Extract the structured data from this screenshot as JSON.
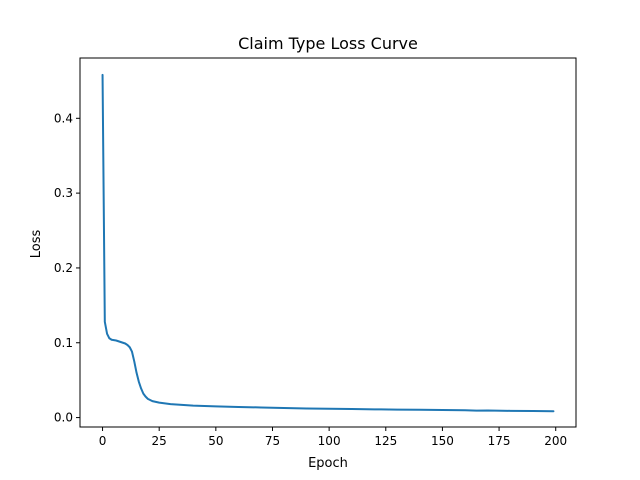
{
  "chart_data": {
    "type": "line",
    "title": "Claim Type Loss Curve",
    "xlabel": "Epoch",
    "ylabel": "Loss",
    "xlim": [
      -9.95,
      208.95
    ],
    "ylim": [
      -0.0126,
      0.4806
    ],
    "xticks": [
      0,
      25,
      50,
      75,
      100,
      125,
      150,
      175,
      200
    ],
    "yticks": [
      0.0,
      0.1,
      0.2,
      0.3,
      0.4
    ],
    "ytick_labels": [
      "0.0",
      "0.1",
      "0.2",
      "0.3",
      "0.4"
    ],
    "grid": false,
    "legend": "none",
    "series": [
      {
        "color": "#1f77b4",
        "x": [
          0,
          1,
          2,
          3,
          4,
          6,
          8,
          10,
          11,
          12,
          13,
          14,
          15,
          16,
          17,
          18,
          19,
          20,
          22,
          25,
          30,
          35,
          40,
          45,
          50,
          60,
          70,
          80,
          90,
          100,
          110,
          120,
          130,
          140,
          150,
          160,
          165,
          170,
          180,
          190,
          199
        ],
        "y": [
          0.458,
          0.128,
          0.112,
          0.106,
          0.104,
          0.103,
          0.101,
          0.099,
          0.097,
          0.094,
          0.088,
          0.075,
          0.06,
          0.048,
          0.039,
          0.032,
          0.028,
          0.025,
          0.022,
          0.02,
          0.018,
          0.017,
          0.016,
          0.0155,
          0.015,
          0.0142,
          0.0135,
          0.0128,
          0.0122,
          0.0118,
          0.0114,
          0.011,
          0.0107,
          0.0104,
          0.0101,
          0.0098,
          0.0093,
          0.0095,
          0.009,
          0.0087,
          0.0085
        ]
      }
    ]
  }
}
